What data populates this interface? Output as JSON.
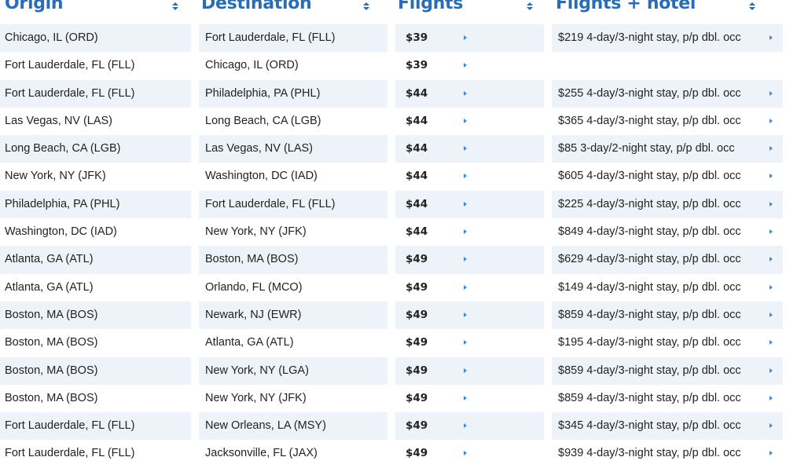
{
  "headers": {
    "origin": "Origin",
    "destination": "Destination",
    "flights": "Flights",
    "flights_hotel": "Flights + hotel"
  },
  "rows": [
    {
      "origin": "Chicago, IL (ORD)",
      "destination": "Fort Lauderdale, FL (FLL)",
      "price": "$39",
      "hotel": "$219 4-day/3-night stay, p/p dbl. occ"
    },
    {
      "origin": "Fort Lauderdale, FL (FLL)",
      "destination": "Chicago, IL (ORD)",
      "price": "$39",
      "hotel": ""
    },
    {
      "origin": "Fort Lauderdale, FL (FLL)",
      "destination": "Philadelphia, PA (PHL)",
      "price": "$44",
      "hotel": "$255 4-day/3-night stay, p/p dbl. occ"
    },
    {
      "origin": "Las Vegas, NV (LAS)",
      "destination": "Long Beach, CA (LGB)",
      "price": "$44",
      "hotel": "$365 4-day/3-night stay, p/p dbl. occ"
    },
    {
      "origin": "Long Beach, CA (LGB)",
      "destination": "Las Vegas, NV (LAS)",
      "price": "$44",
      "hotel": "$85 3-day/2-night stay, p/p dbl. occ"
    },
    {
      "origin": "New York, NY (JFK)",
      "destination": "Washington, DC (IAD)",
      "price": "$44",
      "hotel": "$605 4-day/3-night stay, p/p dbl. occ"
    },
    {
      "origin": "Philadelphia, PA (PHL)",
      "destination": "Fort Lauderdale, FL (FLL)",
      "price": "$44",
      "hotel": "$225 4-day/3-night stay, p/p dbl. occ"
    },
    {
      "origin": "Washington, DC (IAD)",
      "destination": "New York, NY (JFK)",
      "price": "$44",
      "hotel": "$849 4-day/3-night stay, p/p dbl. occ"
    },
    {
      "origin": "Atlanta, GA (ATL)",
      "destination": "Boston, MA (BOS)",
      "price": "$49",
      "hotel": "$629 4-day/3-night stay, p/p dbl. occ"
    },
    {
      "origin": "Atlanta, GA (ATL)",
      "destination": "Orlando, FL (MCO)",
      "price": "$49",
      "hotel": "$149 4-day/3-night stay, p/p dbl. occ"
    },
    {
      "origin": "Boston, MA (BOS)",
      "destination": "Newark, NJ (EWR)",
      "price": "$49",
      "hotel": "$859 4-day/3-night stay, p/p dbl. occ"
    },
    {
      "origin": "Boston, MA (BOS)",
      "destination": "Atlanta, GA (ATL)",
      "price": "$49",
      "hotel": "$195 4-day/3-night stay, p/p dbl. occ"
    },
    {
      "origin": "Boston, MA (BOS)",
      "destination": "New York, NY (LGA)",
      "price": "$49",
      "hotel": "$859 4-day/3-night stay, p/p dbl. occ"
    },
    {
      "origin": "Boston, MA (BOS)",
      "destination": "New York, NY (JFK)",
      "price": "$49",
      "hotel": "$859 4-day/3-night stay, p/p dbl. occ"
    },
    {
      "origin": "Fort Lauderdale, FL (FLL)",
      "destination": "New Orleans, LA (MSY)",
      "price": "$49",
      "hotel": "$345 4-day/3-night stay, p/p dbl. occ"
    },
    {
      "origin": "Fort Lauderdale, FL (FLL)",
      "destination": "Jacksonville, FL (JAX)",
      "price": "$49",
      "hotel": "$939 4-day/3-night stay, p/p dbl. occ"
    }
  ],
  "icons": {
    "sort": "sort-updown-icon",
    "row_arrow": "caret-right-icon"
  },
  "colors": {
    "header_text": "#2a6db5",
    "stripe": "#eef3f9",
    "arrow": "#3d8ad6"
  }
}
